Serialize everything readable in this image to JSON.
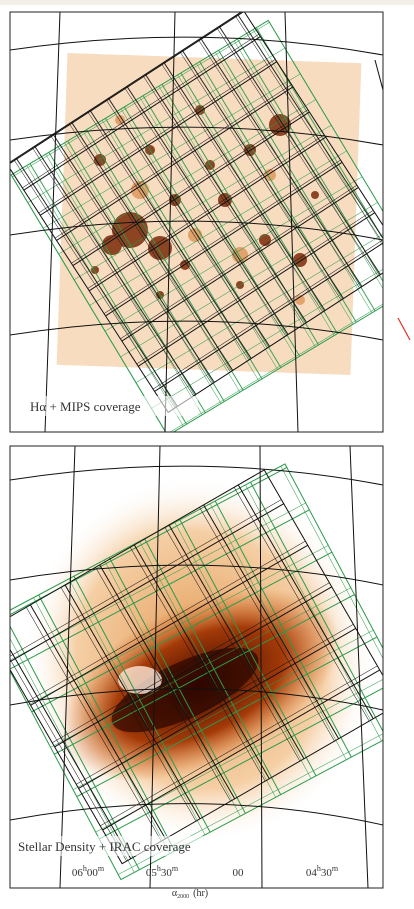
{
  "panels": [
    {
      "label": "Hα + MIPS coverage"
    },
    {
      "label": "Stellar Density + IRAC coverage"
    }
  ],
  "x_axis": {
    "ticks": [
      {
        "hours": "06",
        "h": "h",
        "minutes": "00",
        "m": "m"
      },
      {
        "hours": "05",
        "h": "h",
        "minutes": "30",
        "m": "m"
      },
      {
        "minutes": "00"
      },
      {
        "hours": "04",
        "h": "h",
        "minutes": "30",
        "m": "m"
      }
    ],
    "label": {
      "symbol": "α",
      "subscript": "2000",
      "unit": "(hr)"
    }
  }
}
